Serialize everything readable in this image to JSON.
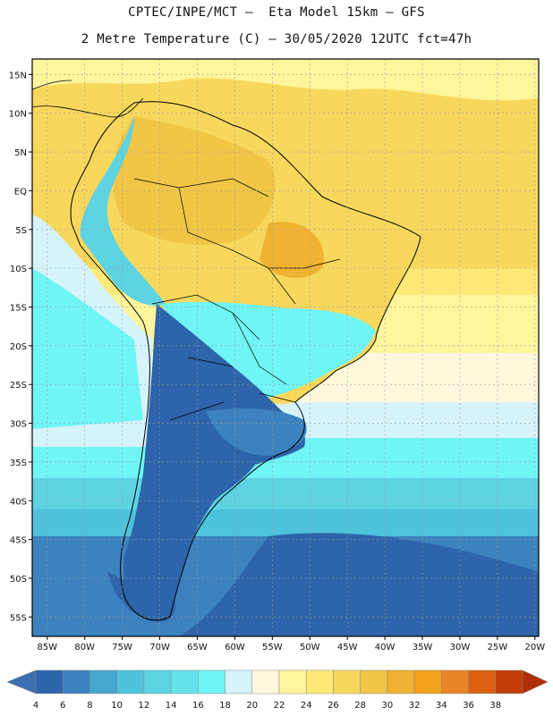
{
  "header": {
    "line1": "CPTEC/INPE/MCT –  Eta Model 15km – GFS",
    "line2": "2 Metre Temperature (C) – 30/05/2020 12UTC fct=47h"
  },
  "map": {
    "lat_labels": [
      "15N",
      "10N",
      "5N",
      "EQ",
      "5S",
      "10S",
      "15S",
      "20S",
      "25S",
      "30S",
      "35S",
      "40S",
      "45S",
      "50S",
      "55S"
    ],
    "lon_labels": [
      "85W",
      "80W",
      "75W",
      "70W",
      "65W",
      "60W",
      "55W",
      "50W",
      "45W",
      "40W",
      "35W",
      "30W",
      "25W",
      "20W"
    ],
    "lat_range": [
      17,
      -57.5
    ],
    "lon_range": [
      -87,
      -19.5
    ]
  },
  "legend": {
    "levels": [
      "4",
      "6",
      "8",
      "10",
      "12",
      "14",
      "16",
      "18",
      "20",
      "22",
      "24",
      "26",
      "28",
      "30",
      "32",
      "34",
      "36",
      "38"
    ],
    "colors": [
      "#3a6fb0",
      "#2d64ab",
      "#3b82be",
      "#45a6cf",
      "#4fc2dc",
      "#5dd3e3",
      "#64e3ec",
      "#6ff5f6",
      "#d6f3fa",
      "#fff8dc",
      "#fff59c",
      "#ffe877",
      "#f8d85c",
      "#f1c646",
      "#efb331",
      "#f3a01c",
      "#ea8424",
      "#dc6010",
      "#c23c06",
      "#b02f06"
    ]
  }
}
